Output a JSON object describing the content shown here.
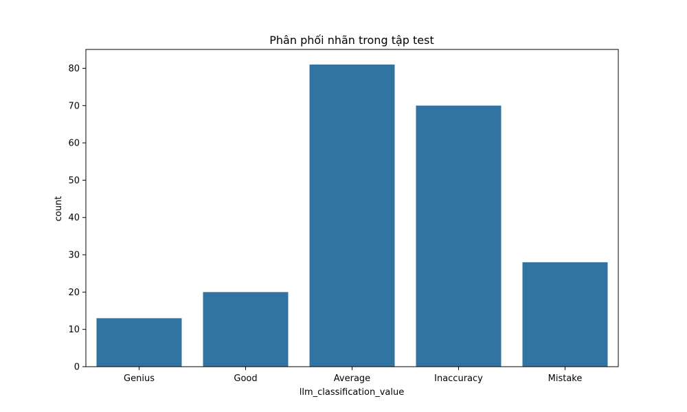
{
  "chart_data": {
    "type": "bar",
    "title": "Phân phối nhãn trong tập test",
    "xlabel": "llm_classification_value",
    "ylabel": "count",
    "categories": [
      "Genius",
      "Good",
      "Average",
      "Inaccuracy",
      "Mistake"
    ],
    "values": [
      13,
      20,
      81,
      70,
      28
    ],
    "ylim": [
      0,
      85.05
    ],
    "yticks": [
      0,
      10,
      20,
      30,
      40,
      50,
      60,
      70,
      80
    ],
    "grid": false,
    "bar_color": "#3274a1"
  }
}
